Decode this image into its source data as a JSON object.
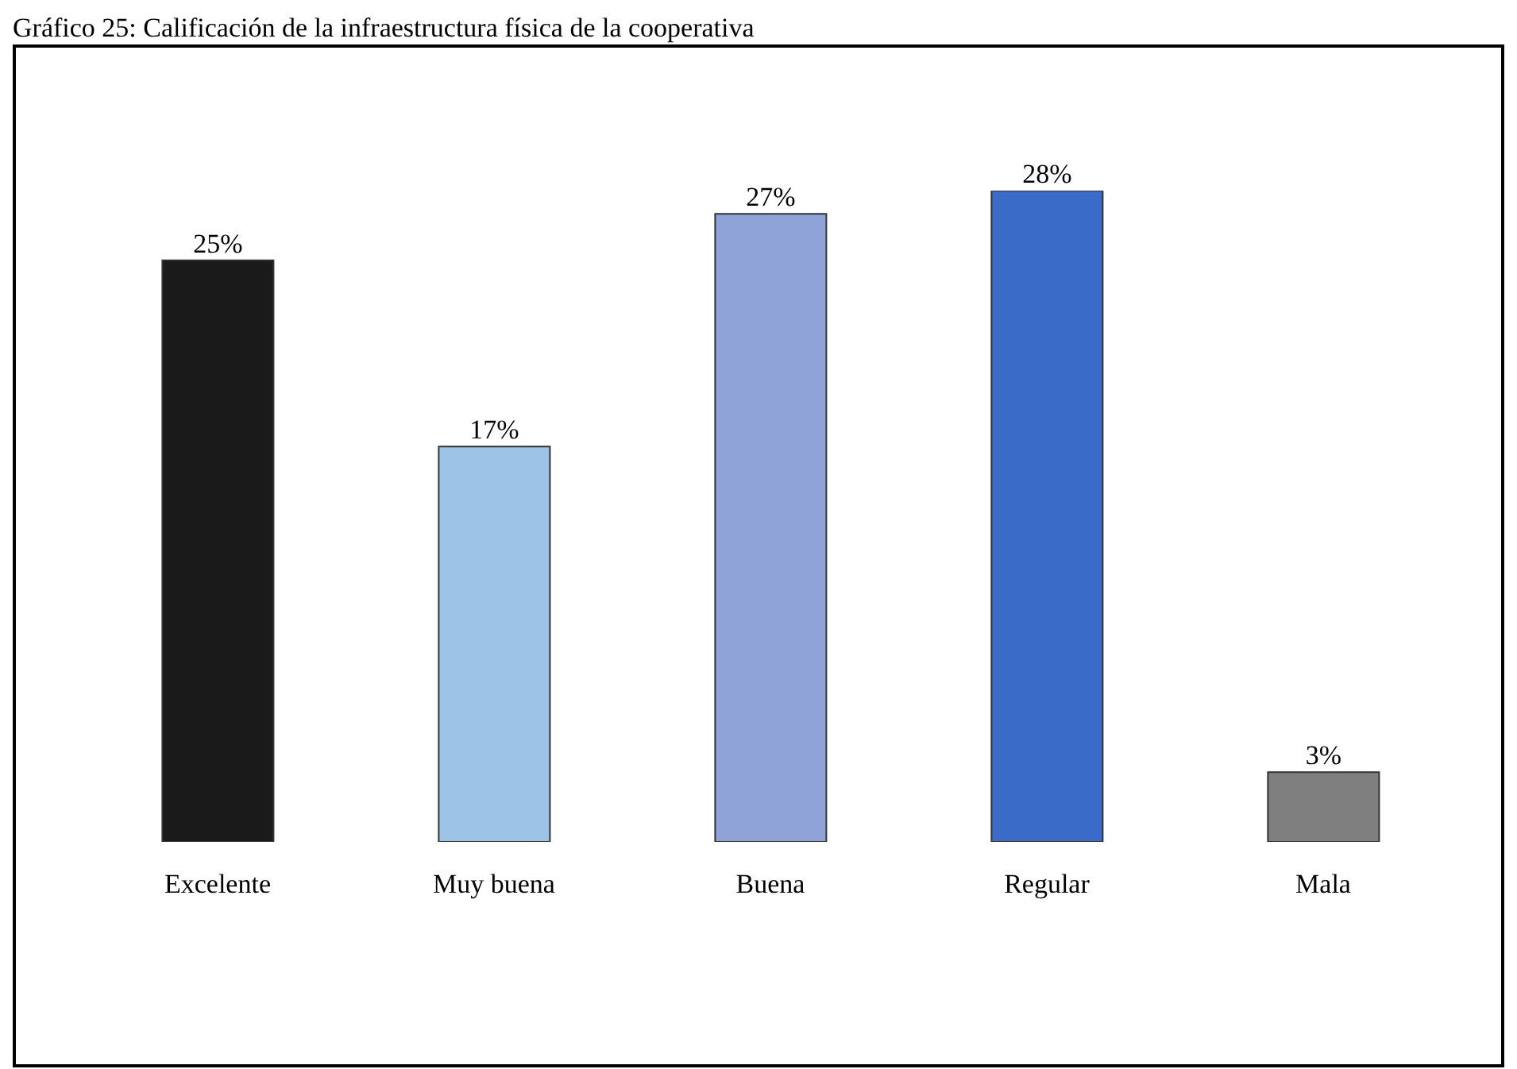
{
  "chart_data": {
    "type": "bar",
    "title": "Gráfico 25: Calificación de la infraestructura física de la cooperativa",
    "categories": [
      "Excelente",
      "Muy buena",
      "Buena",
      "Regular",
      "Mala"
    ],
    "values": [
      25,
      17,
      27,
      28,
      3
    ],
    "value_labels": [
      "25%",
      "17%",
      "27%",
      "28%",
      "3%"
    ],
    "colors": [
      "#1a1a1a",
      "#9dc3e6",
      "#8fa3d8",
      "#3a6bc8",
      "#7f7f7f"
    ],
    "tick_labels": "x"
  }
}
